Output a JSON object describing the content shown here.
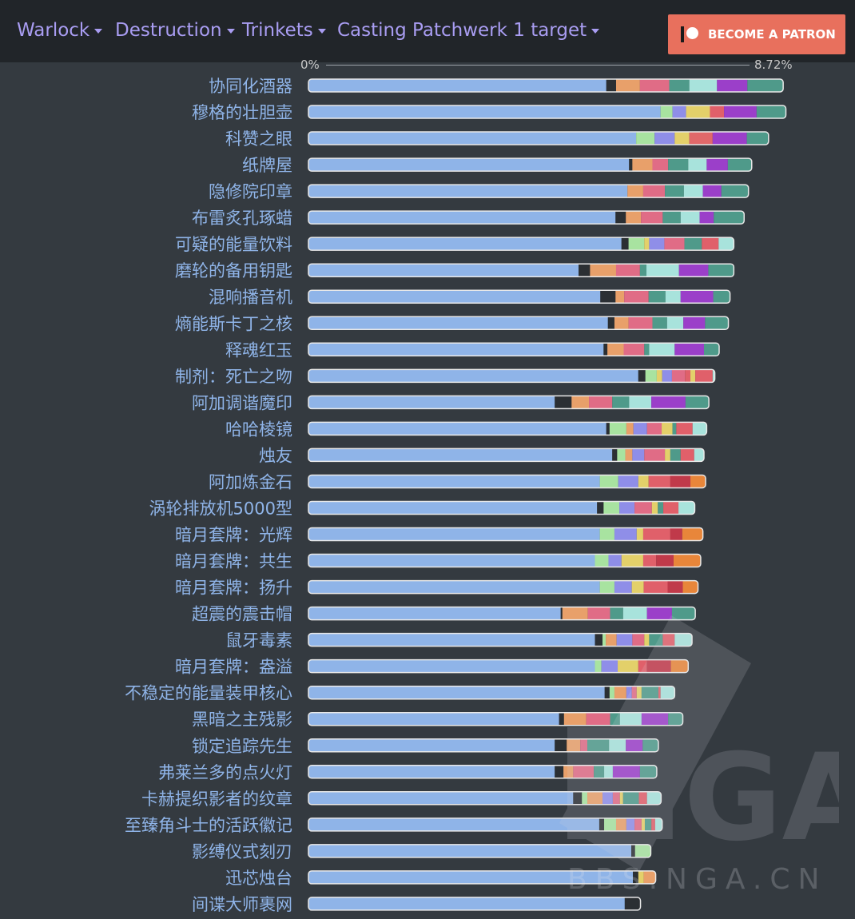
{
  "nav": {
    "class_label": "Warlock",
    "spec_label": "Destruction",
    "category_label": "Trinkets",
    "fight_label": "Casting Patchwerk 1 target",
    "patron_label": "BECOME A PATRON"
  },
  "chart_data": {
    "type": "bar",
    "orientation": "horizontal",
    "stacked": true,
    "axis_min_label": "0%",
    "axis_max_label": "8.72%",
    "categories": [
      "协同化酒器",
      "穆格的壮胆壶",
      "科赞之眼",
      "纸牌屋",
      "隐修院印章",
      "布雷炙孔琢蜡",
      "可疑的能量饮料",
      "磨轮的备用钥匙",
      "混响播音机",
      "熵能斯卡丁之核",
      "释魂红玉",
      "制剂：死亡之吻",
      "阿加调谐魔印",
      "哈哈棱镜",
      "烛友",
      "阿加炼金石",
      "涡轮排放机5000型",
      "暗月套牌：光辉",
      "暗月套牌：共生",
      "暗月套牌：扬升",
      "超震的震击帽",
      "鼠牙毒素",
      "暗月套牌：盎溢",
      "不稳定的能量装甲核心",
      "黑暗之主残影",
      "锁定追踪先生",
      "弗莱兰多的点火灯",
      "卡赫提织影者的纹章",
      "至臻角斗士的活跃徽记",
      "影缚仪式刻刃",
      "迅芯烛台",
      "间谍大师裹网"
    ],
    "base_values": [
      5.49,
      6.49,
      6.04,
      5.91,
      5.88,
      5.66,
      5.77,
      4.98,
      5.38,
      5.52,
      5.44,
      6.08,
      4.54,
      5.49,
      5.6,
      5.37,
      5.32,
      5.37,
      5.28,
      5.37,
      4.65,
      5.28,
      5.28,
      5.46,
      4.62,
      4.54,
      4.54,
      4.88,
      5.36,
      5.95,
      5.98,
      5.83
    ],
    "segments": [
      [
        [
          "#2b2f33",
          0.18
        ],
        [
          "#e8a06a",
          0.44
        ],
        [
          "#e06c86",
          0.54
        ],
        [
          "#4f9a8a",
          0.37
        ],
        [
          "#a8e3dc",
          0.51
        ],
        [
          "#9b3fc9",
          0.56
        ],
        [
          "#4f9a8a",
          0.66
        ]
      ],
      [
        [
          "#a8e3a0",
          0.22
        ],
        [
          "#8f8ee8",
          0.25
        ],
        [
          "#e3d06a",
          0.44
        ],
        [
          "#e0606a",
          0.26
        ],
        [
          "#9b3fc9",
          0.6
        ],
        [
          "#4f9a8a",
          0.54
        ]
      ],
      [
        [
          "#a8e3a0",
          0.34
        ],
        [
          "#8f8ee8",
          0.37
        ],
        [
          "#e3d06a",
          0.27
        ],
        [
          "#e0686a",
          0.43
        ],
        [
          "#9b3fc9",
          0.63
        ],
        [
          "#4f9a8a",
          0.4
        ]
      ],
      [
        [
          "#2b2f33",
          0.06
        ],
        [
          "#e8a06a",
          0.37
        ],
        [
          "#e06c86",
          0.29
        ],
        [
          "#4f9a8a",
          0.37
        ],
        [
          "#a8e3dc",
          0.34
        ],
        [
          "#9b3fc9",
          0.39
        ],
        [
          "#4f9a8a",
          0.44
        ]
      ],
      [
        [
          "#e8a06a",
          0.29
        ],
        [
          "#e06c86",
          0.4
        ],
        [
          "#4f9a8a",
          0.35
        ],
        [
          "#a8e3dc",
          0.35
        ],
        [
          "#9b3fc9",
          0.34
        ],
        [
          "#4f9a8a",
          0.5
        ]
      ],
      [
        [
          "#2b2f33",
          0.19
        ],
        [
          "#e8a06a",
          0.28
        ],
        [
          "#e06c86",
          0.4
        ],
        [
          "#4f9a8a",
          0.33
        ],
        [
          "#a8e3dc",
          0.35
        ],
        [
          "#9b3fc9",
          0.26
        ],
        [
          "#4f9a8a",
          0.56
        ]
      ],
      [
        [
          "#2b2f33",
          0.13
        ],
        [
          "#a8e3a0",
          0.29
        ],
        [
          "#e3d06a",
          0.09
        ],
        [
          "#8f8ee8",
          0.28
        ],
        [
          "#e06c86",
          0.37
        ],
        [
          "#4f9a8a",
          0.32
        ],
        [
          "#e0606a",
          0.31
        ],
        [
          "#a8e3dc",
          0.28
        ]
      ],
      [
        [
          "#2b2f33",
          0.21
        ],
        [
          "#e8a06a",
          0.48
        ],
        [
          "#e06c86",
          0.44
        ],
        [
          "#4f9a8a",
          0.12
        ],
        [
          "#a8e3dc",
          0.6
        ],
        [
          "#9b3fc9",
          0.54
        ],
        [
          "#4f9a8a",
          0.47
        ]
      ],
      [
        [
          "#2b2f33",
          0.28
        ],
        [
          "#e8a06a",
          0.16
        ],
        [
          "#e06c86",
          0.45
        ],
        [
          "#4f9a8a",
          0.31
        ],
        [
          "#a8e3dc",
          0.28
        ],
        [
          "#9b3fc9",
          0.6
        ],
        [
          "#4f9a8a",
          0.31
        ]
      ],
      [
        [
          "#2b2f33",
          0.12
        ],
        [
          "#e8a06a",
          0.26
        ],
        [
          "#e06c86",
          0.44
        ],
        [
          "#4f9a8a",
          0.27
        ],
        [
          "#a8e3dc",
          0.3
        ],
        [
          "#9b3fc9",
          0.4
        ],
        [
          "#4f9a8a",
          0.43
        ]
      ],
      [
        [
          "#2b2f33",
          0.07
        ],
        [
          "#e8a06a",
          0.3
        ],
        [
          "#e06c86",
          0.38
        ],
        [
          "#4f9a8a",
          0.09
        ],
        [
          "#a8e3dc",
          0.47
        ],
        [
          "#9b3fc9",
          0.54
        ],
        [
          "#4f9a8a",
          0.28
        ]
      ],
      [
        [
          "#2b2f33",
          0.13
        ],
        [
          "#a8e3a0",
          0.21
        ],
        [
          "#e3d06a",
          0.1
        ],
        [
          "#8f8ee8",
          0.18
        ],
        [
          "#e06c86",
          0.24
        ],
        [
          "#e0606a",
          0.1
        ],
        [
          "#e3d06a",
          0.09
        ],
        [
          "#e0606a",
          0.32
        ],
        [
          "#a8e3dc",
          0.04
        ]
      ],
      [
        [
          "#2b2f33",
          0.31
        ],
        [
          "#e8a06a",
          0.32
        ],
        [
          "#e06c86",
          0.43
        ],
        [
          "#4f9a8a",
          0.31
        ],
        [
          "#a8e3dc",
          0.41
        ],
        [
          "#9b3fc9",
          0.63
        ],
        [
          "#4f9a8a",
          0.43
        ]
      ],
      [
        [
          "#2b2f33",
          0.06
        ],
        [
          "#a8e3a0",
          0.31
        ],
        [
          "#e8a06a",
          0.13
        ],
        [
          "#8f8ee8",
          0.25
        ],
        [
          "#e06c86",
          0.27
        ],
        [
          "#e3d06a",
          0.2
        ],
        [
          "#4f9a8a",
          0.07
        ],
        [
          "#e0606a",
          0.3
        ],
        [
          "#a8e3dc",
          0.26
        ]
      ],
      [
        [
          "#2b2f33",
          0.09
        ],
        [
          "#a8e3a0",
          0.15
        ],
        [
          "#e8a06a",
          0.13
        ],
        [
          "#8f8ee8",
          0.22
        ],
        [
          "#e06c86",
          0.38
        ],
        [
          "#e3d06a",
          0.1
        ],
        [
          "#4f9a8a",
          0.19
        ],
        [
          "#e0606a",
          0.25
        ],
        [
          "#a8e3dc",
          0.18
        ]
      ],
      [
        [
          "#a8e3a0",
          0.34
        ],
        [
          "#8f8ee8",
          0.37
        ],
        [
          "#e3d06a",
          0.19
        ],
        [
          "#e0606a",
          0.4
        ],
        [
          "#c03a4a",
          0.37
        ],
        [
          "#e8863a",
          0.28
        ]
      ],
      [
        [
          "#2b2f33",
          0.12
        ],
        [
          "#a8e3a0",
          0.29
        ],
        [
          "#8f8ee8",
          0.28
        ],
        [
          "#e06c86",
          0.32
        ],
        [
          "#e3d06a",
          0.11
        ],
        [
          "#4f9a8a",
          0.1
        ],
        [
          "#e0606a",
          0.28
        ],
        [
          "#a8e3dc",
          0.3
        ]
      ],
      [
        [
          "#a8e3a0",
          0.27
        ],
        [
          "#8f8ee8",
          0.41
        ],
        [
          "#e3d06a",
          0.12
        ],
        [
          "#e0606a",
          0.5
        ],
        [
          "#c03a4a",
          0.22
        ],
        [
          "#e8863a",
          0.38
        ]
      ],
      [
        [
          "#a8e3a0",
          0.25
        ],
        [
          "#8f8ee8",
          0.24
        ],
        [
          "#e3d06a",
          0.4
        ],
        [
          "#e0606a",
          0.24
        ],
        [
          "#c03a4a",
          0.32
        ],
        [
          "#e8863a",
          0.5
        ]
      ],
      [
        [
          "#a8e3a0",
          0.27
        ],
        [
          "#8f8ee8",
          0.32
        ],
        [
          "#e3d06a",
          0.22
        ],
        [
          "#e0606a",
          0.44
        ],
        [
          "#c03a4a",
          0.28
        ],
        [
          "#e8863a",
          0.28
        ]
      ],
      [
        [
          "#2b2f33",
          0.03
        ],
        [
          "#e8a06a",
          0.47
        ],
        [
          "#e06c86",
          0.41
        ],
        [
          "#4f9a8a",
          0.24
        ],
        [
          "#a8e3dc",
          0.44
        ],
        [
          "#9b3fc9",
          0.46
        ],
        [
          "#4f9a8a",
          0.43
        ]
      ],
      [
        [
          "#2b2f33",
          0.14
        ],
        [
          "#a8e3a0",
          0.06
        ],
        [
          "#e8a06a",
          0.2
        ],
        [
          "#8f8ee8",
          0.29
        ],
        [
          "#e06c86",
          0.22
        ],
        [
          "#e3d06a",
          0.09
        ],
        [
          "#4f9a8a",
          0.25
        ],
        [
          "#e0606a",
          0.22
        ],
        [
          "#a8e3dc",
          0.32
        ]
      ],
      [
        [
          "#a8e3a0",
          0.12
        ],
        [
          "#8f8ee8",
          0.3
        ],
        [
          "#e3d06a",
          0.38
        ],
        [
          "#e0606a",
          0.16
        ],
        [
          "#c03a4a",
          0.44
        ],
        [
          "#e8863a",
          0.32
        ]
      ],
      [
        [
          "#2b2f33",
          0.09
        ],
        [
          "#a8e3a0",
          0.09
        ],
        [
          "#e8a06a",
          0.22
        ],
        [
          "#8f8ee8",
          0.1
        ],
        [
          "#e06c86",
          0.09
        ],
        [
          "#e3d06a",
          0.09
        ],
        [
          "#4f9a8a",
          0.31
        ],
        [
          "#e0606a",
          0.04
        ],
        [
          "#a8e3dc",
          0.26
        ]
      ],
      [
        [
          "#2b2f33",
          0.09
        ],
        [
          "#e8a06a",
          0.41
        ],
        [
          "#e06c86",
          0.44
        ],
        [
          "#4f9a8a",
          0.18
        ],
        [
          "#a8e3dc",
          0.4
        ],
        [
          "#9b3fc9",
          0.49
        ],
        [
          "#4f9a8a",
          0.27
        ]
      ],
      [
        [
          "#2b2f33",
          0.22
        ],
        [
          "#e8a06a",
          0.25
        ],
        [
          "#e06c86",
          0.13
        ],
        [
          "#4f9a8a",
          0.4
        ],
        [
          "#a8e3dc",
          0.31
        ],
        [
          "#9b3fc9",
          0.31
        ],
        [
          "#4f9a8a",
          0.29
        ]
      ],
      [
        [
          "#2b2f33",
          0.16
        ],
        [
          "#e8a06a",
          0.18
        ],
        [
          "#e06c86",
          0.38
        ],
        [
          "#4f9a8a",
          0.19
        ],
        [
          "#a8e3dc",
          0.16
        ],
        [
          "#9b3fc9",
          0.5
        ],
        [
          "#4f9a8a",
          0.31
        ]
      ],
      [
        [
          "#2b2f33",
          0.16
        ],
        [
          "#a8e3a0",
          0.1
        ],
        [
          "#e8a06a",
          0.28
        ],
        [
          "#8f8ee8",
          0.19
        ],
        [
          "#e06c86",
          0.13
        ],
        [
          "#e3d06a",
          0.06
        ],
        [
          "#4f9a8a",
          0.29
        ],
        [
          "#e0606a",
          0.15
        ],
        [
          "#a8e3dc",
          0.26
        ]
      ],
      [
        [
          "#2b2f33",
          0.09
        ],
        [
          "#a8e3a0",
          0.22
        ],
        [
          "#e8a06a",
          0.19
        ],
        [
          "#8f8ee8",
          0.15
        ],
        [
          "#e06c86",
          0.13
        ],
        [
          "#e3d06a",
          0.06
        ],
        [
          "#4f9a8a",
          0.12
        ],
        [
          "#e0606a",
          0.07
        ],
        [
          "#a8e3dc",
          0.13
        ]
      ],
      [
        [
          "#2b2f33",
          0.07
        ],
        [
          "#a8e3a0",
          0.29
        ]
      ],
      [
        [
          "#2b2f33",
          0.1
        ],
        [
          "#e3d06a",
          0.1
        ],
        [
          "#e8a06a",
          0.22
        ]
      ],
      [
        [
          "#2b2f33",
          0.29
        ]
      ]
    ]
  }
}
